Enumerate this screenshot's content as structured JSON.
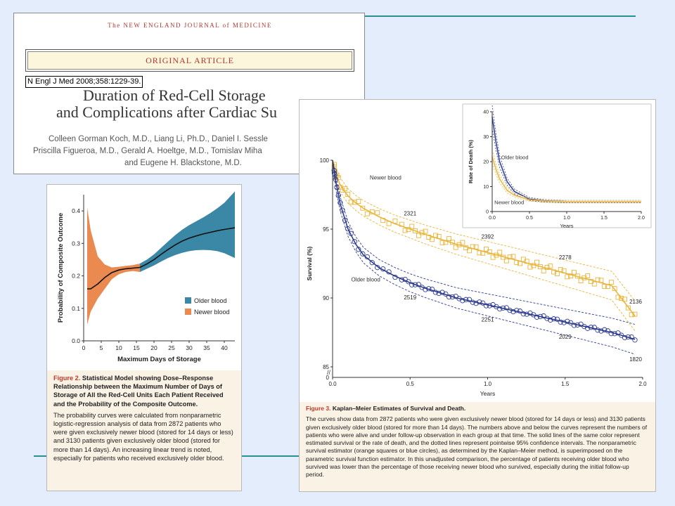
{
  "header_card": {
    "journal": "The NEW ENGLAND JOURNAL of MEDICINE",
    "section": "ORIGINAL ARTICLE",
    "citation": "N Engl J Med 2008;358:1229-39.",
    "title_line1": "Duration of Red-Cell Storage",
    "title_line2": "and Complications after Cardiac Su",
    "authors_line1": "Colleen Gorman Koch, M.D., Liang Li, Ph.D., Daniel I. Sessle",
    "authors_line2": "Priscilla Figueroa, M.D., Gerald A. Hoeltge, M.D., Tomislav Miha",
    "authors_line3": "and Eugene H. Blackstone, M.D."
  },
  "colors": {
    "older": "#3b88a6",
    "newer": "#ea8a50",
    "fig3_older": "#2d3b8f",
    "fig3_newer": "#e9b53a",
    "caption_bg": "#fbf2e6",
    "rule": "#2a8f93"
  },
  "figure2": {
    "caption_number": "Figure 2.",
    "caption_title": "Statistical Model showing Dose–Response Relationship between the Maximum Number of Days of Storage of All the Red-Cell Units Each Patient Received and the Probability of the Composite Outcome.",
    "caption_body": "The probability curves were calculated from nonparametric logistic-regression analysis of data from 2872 patients who were given exclusively newer blood (stored for 14 days or less) and 3130 patients given exclusively older blood (stored for more than 14 days). An increasing linear trend is noted, especially for patients who received exclusively older blood."
  },
  "figure3": {
    "caption_number": "Figure 3.",
    "caption_title": "Kaplan–Meier Estimates of Survival and Death.",
    "caption_body": "The curves show data from 2872 patients who were given exclusively newer blood (stored for 14 days or less) and 3130 patients given exclusively older blood (stored for more than 14 days). The numbers above and below the curves represent the numbers of patients who were alive and under follow-up observation in each group at that time. The solid lines of the same color represent estimated survival or the rate of death, and the dotted lines represent pointwise 95% confidence intervals. The nonparametric survival estimator (orange squares or blue circles), as determined by the Kaplan–Meier method, is superimposed on the parametric survival function estimator. In this unadjusted comparison, the percentage of patients receiving older blood who survived was lower than the percentage of those receiving newer blood who survived, especially during the initial follow-up period."
  },
  "chart_data": [
    {
      "id": "fig2",
      "type": "area",
      "xlabel": "Maximum Days of Storage",
      "ylabel": "Probability of Composite Outcome",
      "xlim": [
        0,
        43
      ],
      "ylim": [
        0,
        0.45
      ],
      "x_ticks": [
        0,
        5,
        10,
        15,
        20,
        25,
        30,
        35,
        40
      ],
      "y_ticks": [
        0.0,
        0.1,
        0.2,
        0.3,
        0.4
      ],
      "legend": [
        "Older blood",
        "Newer blood"
      ],
      "legend_position": "right",
      "series": [
        {
          "name": "Newer blood",
          "x": [
            1,
            2,
            4,
            6,
            8,
            10,
            12,
            14,
            16
          ],
          "y": [
            0.16,
            0.16,
            0.175,
            0.195,
            0.21,
            0.218,
            0.222,
            0.224,
            0.226
          ],
          "lower": [
            0.05,
            0.09,
            0.13,
            0.16,
            0.19,
            0.205,
            0.212,
            0.215,
            0.212
          ],
          "upper": [
            0.41,
            0.34,
            0.26,
            0.235,
            0.226,
            0.228,
            0.231,
            0.233,
            0.238
          ]
        },
        {
          "name": "Older blood",
          "x": [
            16,
            18,
            20,
            22,
            24,
            26,
            28,
            30,
            32,
            34,
            36,
            38,
            40,
            43
          ],
          "y": [
            0.226,
            0.237,
            0.25,
            0.266,
            0.281,
            0.295,
            0.307,
            0.316,
            0.323,
            0.329,
            0.334,
            0.339,
            0.343,
            0.348
          ],
          "lower": [
            0.212,
            0.222,
            0.232,
            0.244,
            0.255,
            0.264,
            0.271,
            0.276,
            0.279,
            0.28,
            0.279,
            0.276,
            0.27,
            0.255
          ],
          "upper": [
            0.238,
            0.25,
            0.266,
            0.286,
            0.306,
            0.325,
            0.342,
            0.356,
            0.368,
            0.38,
            0.393,
            0.408,
            0.425,
            0.46
          ]
        }
      ]
    },
    {
      "id": "fig3-survival",
      "type": "line",
      "xlabel": "Years",
      "ylabel": "Survival (%)",
      "xlim": [
        0,
        2.0
      ],
      "ylim": [
        85,
        100
      ],
      "x_ticks": [
        0.0,
        0.5,
        1.0,
        1.5,
        2.0
      ],
      "y_ticks": [
        85,
        90,
        95,
        100
      ],
      "series": [
        {
          "name": "Newer blood",
          "x": [
            0,
            0.02,
            0.05,
            0.1,
            0.15,
            0.2,
            0.3,
            0.4,
            0.5,
            0.6,
            0.8,
            1.0,
            1.2,
            1.4,
            1.6,
            1.8,
            1.95
          ],
          "y": [
            100,
            99.0,
            98.2,
            97.4,
            96.9,
            96.5,
            95.9,
            95.4,
            95.0,
            94.6,
            93.9,
            93.3,
            92.7,
            92.1,
            91.5,
            90.9,
            88.7
          ],
          "at_risk": [
            {
              "x": 0.5,
              "n": "2321"
            },
            {
              "x": 1.0,
              "n": "2392"
            },
            {
              "x": 1.5,
              "n": "2278"
            },
            {
              "x": 2.0,
              "n": "2136"
            }
          ]
        },
        {
          "name": "Older blood",
          "x": [
            0,
            0.02,
            0.05,
            0.1,
            0.15,
            0.2,
            0.3,
            0.4,
            0.5,
            0.6,
            0.8,
            1.0,
            1.2,
            1.4,
            1.6,
            1.8,
            1.95
          ],
          "y": [
            100,
            98.5,
            96.8,
            95.0,
            93.9,
            93.1,
            92.2,
            91.6,
            91.1,
            90.7,
            90.0,
            89.5,
            89.0,
            88.5,
            88.0,
            87.5,
            87.0
          ],
          "at_risk": [
            {
              "x": 0.5,
              "n": "2519"
            },
            {
              "x": 1.0,
              "n": "2251"
            },
            {
              "x": 1.5,
              "n": "2029"
            },
            {
              "x": 2.0,
              "n": "1820"
            }
          ]
        }
      ]
    },
    {
      "id": "fig3-inset",
      "type": "line",
      "xlabel": "Years",
      "ylabel": "Rate of Death (%)",
      "xlim": [
        0,
        2.0
      ],
      "ylim": [
        0,
        40
      ],
      "x_ticks": [
        0.0,
        0.5,
        1.0,
        1.5,
        2.0
      ],
      "y_ticks": [
        0,
        10,
        20,
        30,
        40
      ],
      "series": [
        {
          "name": "Older blood",
          "x": [
            0,
            0.05,
            0.1,
            0.2,
            0.3,
            0.5,
            0.7,
            1.0,
            1.5,
            2.0
          ],
          "y": [
            38,
            28,
            20,
            12,
            8,
            5,
            4.3,
            4.0,
            4.0,
            4.0
          ]
        },
        {
          "name": "Newer blood",
          "x": [
            0,
            0.05,
            0.1,
            0.2,
            0.3,
            0.5,
            0.7,
            1.0,
            1.5,
            2.0
          ],
          "y": [
            22,
            17,
            13,
            8.5,
            6.5,
            4.7,
            4.2,
            4.0,
            4.0,
            4.0
          ]
        }
      ]
    }
  ]
}
